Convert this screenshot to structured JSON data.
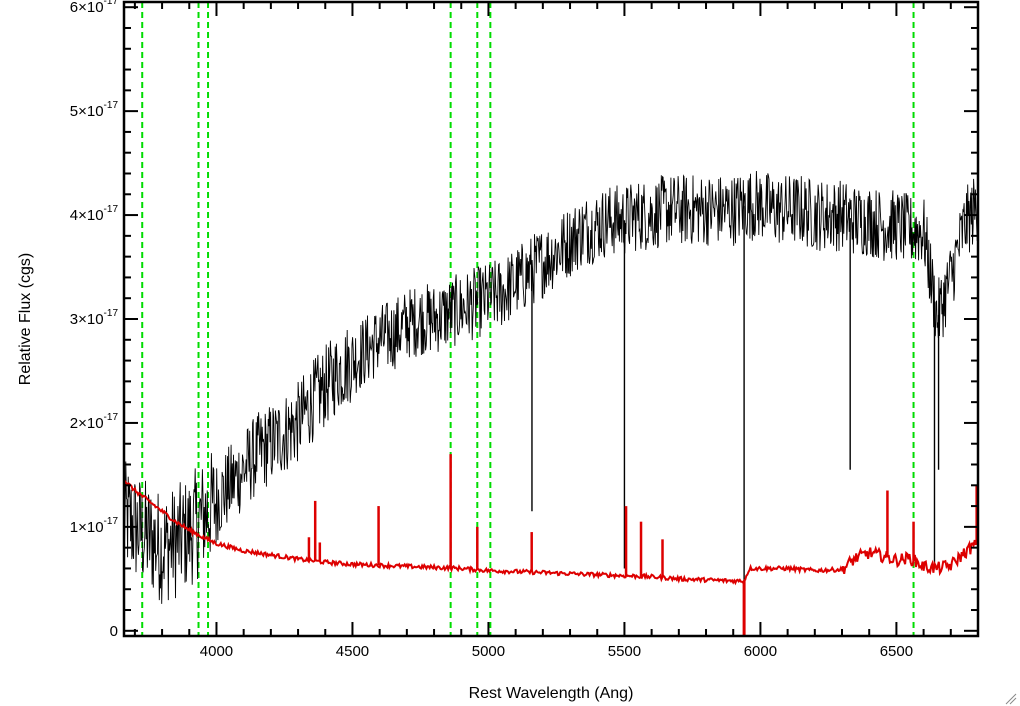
{
  "chart_data": {
    "type": "line",
    "xlabel": "Rest Wavelength (Ang)",
    "ylabel": "Relative Flux (cgs)",
    "xlim": [
      3660,
      6800
    ],
    "ylim": [
      -5e-19,
      6.05e-17
    ],
    "x_ticks": [
      4000,
      4500,
      5000,
      5500,
      6000,
      6500
    ],
    "x_tick_labels": [
      "4000",
      "4500",
      "5000",
      "5500",
      "6000",
      "6500"
    ],
    "y_ticks": [
      0,
      1e-17,
      2e-17,
      3e-17,
      4e-17,
      5e-17,
      6e-17
    ],
    "y_tick_labels": [
      {
        "mantissa": "0",
        "exponent": ""
      },
      {
        "mantissa": "1×10",
        "exponent": "-17"
      },
      {
        "mantissa": "2×10",
        "exponent": "-17"
      },
      {
        "mantissa": "3×10",
        "exponent": "-17"
      },
      {
        "mantissa": "4×10",
        "exponent": "-17"
      },
      {
        "mantissa": "5×10",
        "exponent": "-17"
      },
      {
        "mantissa": "6×10",
        "exponent": "-17"
      }
    ],
    "grid": false,
    "vertical_markers": {
      "color": "#00dd00",
      "style": "dashed",
      "x": [
        3727,
        3934,
        3969,
        4861,
        4959,
        5007,
        6563
      ]
    },
    "series": [
      {
        "color": "#000000",
        "style": "noisy spectrum",
        "x": [
          3660,
          3700,
          3750,
          3800,
          3850,
          3900,
          3950,
          4000,
          4050,
          4100,
          4150,
          4200,
          4250,
          4300,
          4350,
          4400,
          4450,
          4500,
          4550,
          4600,
          4650,
          4700,
          4750,
          4800,
          4850,
          4900,
          4950,
          5000,
          5050,
          5100,
          5150,
          5200,
          5250,
          5300,
          5350,
          5400,
          5450,
          5500,
          5550,
          5600,
          5650,
          5700,
          5750,
          5800,
          5850,
          5900,
          5950,
          6000,
          6050,
          6100,
          6150,
          6200,
          6250,
          6300,
          6350,
          6400,
          6450,
          6500,
          6550,
          6600,
          6650,
          6700,
          6750,
          6800
        ],
        "y": [
          1.1e-17,
          1e-17,
          9e-18,
          8e-18,
          8.5e-18,
          9.5e-18,
          1.1e-17,
          1.25e-17,
          1.4e-17,
          1.55e-17,
          1.7e-17,
          1.8e-17,
          1.9e-17,
          2e-17,
          2.2e-17,
          2.35e-17,
          2.5e-17,
          2.6e-17,
          2.7e-17,
          2.8e-17,
          2.85e-17,
          2.95e-17,
          3e-17,
          3e-17,
          3.05e-17,
          3.1e-17,
          3.15e-17,
          3.2e-17,
          3.25e-17,
          3.35e-17,
          3.45e-17,
          3.55e-17,
          3.65e-17,
          3.75e-17,
          3.85e-17,
          3.9e-17,
          3.95e-17,
          3.95e-17,
          4e-17,
          4e-17,
          4.05e-17,
          4.05e-17,
          4.05e-17,
          4.05e-17,
          4.05e-17,
          4.05e-17,
          4.1e-17,
          4.1e-17,
          4.05e-17,
          4.05e-17,
          4.05e-17,
          4e-17,
          4e-17,
          4e-17,
          3.95e-17,
          3.95e-17,
          3.9e-17,
          3.9e-17,
          3.85e-17,
          3.85e-17,
          3e-17,
          3.4e-17,
          3.9e-17,
          4.1e-17
        ]
      },
      {
        "color": "#dd0000",
        "style": "model fit",
        "x": [
          3660,
          3700,
          3750,
          3800,
          3850,
          3900,
          3950,
          4000,
          4100,
          4200,
          4300,
          4400,
          4500,
          4600,
          4700,
          4800,
          4900,
          5000,
          5100,
          5200,
          5300,
          5400,
          5500,
          5600,
          5700,
          5800,
          5900,
          5940,
          5960,
          6000,
          6100,
          6200,
          6300,
          6350,
          6400,
          6450,
          6500,
          6550,
          6600,
          6650,
          6700,
          6750,
          6800
        ],
        "y": [
          1.45e-17,
          1.35e-17,
          1.25e-17,
          1.15e-17,
          1.05e-17,
          9.7e-18,
          9e-18,
          8.4e-18,
          7.7e-18,
          7.3e-18,
          6.9e-18,
          6.6e-18,
          6.4e-18,
          6.3e-18,
          6.2e-18,
          6.1e-18,
          6e-18,
          5.8e-18,
          5.7e-18,
          5.6e-18,
          5.5e-18,
          5.4e-18,
          5.3e-18,
          5.2e-18,
          5e-18,
          4.9e-18,
          4.8e-18,
          4.8e-18,
          6e-18,
          6e-18,
          6e-18,
          5.8e-18,
          5.9e-18,
          7e-18,
          7.5e-18,
          7.2e-18,
          6.8e-18,
          7e-18,
          6.2e-18,
          6e-18,
          6.3e-18,
          7.5e-18,
          8.5e-18
        ]
      }
    ],
    "red_emission_spikes": [
      {
        "x": 4340,
        "y": 9e-18
      },
      {
        "x": 4363,
        "y": 1.25e-17
      },
      {
        "x": 4380,
        "y": 8.5e-18
      },
      {
        "x": 4596,
        "y": 1.2e-17
      },
      {
        "x": 4861,
        "y": 1.7e-17
      },
      {
        "x": 4959,
        "y": 1e-17
      },
      {
        "x": 5159,
        "y": 9.5e-18
      },
      {
        "x": 5506,
        "y": 1.2e-17
      },
      {
        "x": 5561,
        "y": 1.05e-17
      },
      {
        "x": 5640,
        "y": 8.8e-18
      },
      {
        "x": 6467,
        "y": 1.35e-17
      },
      {
        "x": 6563,
        "y": 1.05e-17
      },
      {
        "x": 6795,
        "y": 1.4e-17
      }
    ],
    "black_absorption_dips": [
      {
        "x": 5160,
        "y": 1.15e-17
      },
      {
        "x": 5500,
        "y": 6e-18
      },
      {
        "x": 5940,
        "y": 0.0
      },
      {
        "x": 6330,
        "y": 1.55e-17
      },
      {
        "x": 6640,
        "y": 6e-18
      },
      {
        "x": 6655,
        "y": 1.55e-17
      }
    ]
  }
}
